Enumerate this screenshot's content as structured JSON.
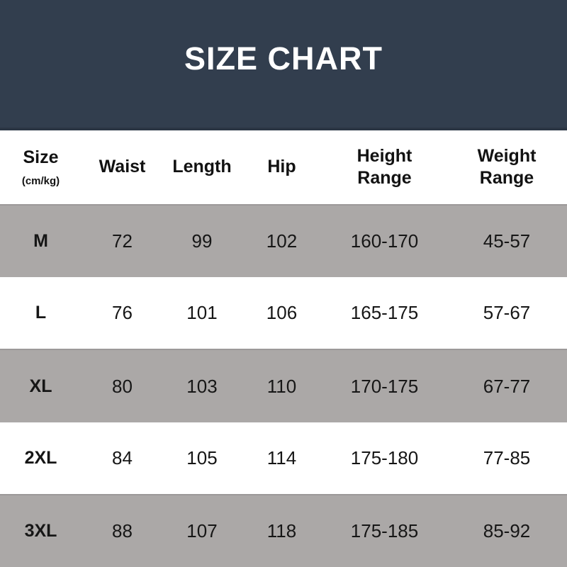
{
  "title": "SIZE CHART",
  "colors": {
    "banner_background": "#323e4e",
    "banner_border": "#2b3544",
    "title_text": "#ffffff",
    "row_gray": "#aba8a7",
    "row_gray_border": "#9c9999",
    "row_white": "#ffffff",
    "table_text": "#161616"
  },
  "columns": [
    {
      "label": "Size",
      "sublabel": "(cm/kg)"
    },
    {
      "label": "Waist"
    },
    {
      "label": "Length"
    },
    {
      "label": "Hip"
    },
    {
      "label": "Height Range"
    },
    {
      "label": "Weight Range"
    }
  ],
  "rows": [
    {
      "size": "M",
      "waist": "72",
      "length": "99",
      "hip": "102",
      "height_range": "160-170",
      "weight_range": "45-57"
    },
    {
      "size": "L",
      "waist": "76",
      "length": "101",
      "hip": "106",
      "height_range": "165-175",
      "weight_range": "57-67"
    },
    {
      "size": "XL",
      "waist": "80",
      "length": "103",
      "hip": "110",
      "height_range": "170-175",
      "weight_range": "67-77"
    },
    {
      "size": "2XL",
      "waist": "84",
      "length": "105",
      "hip": "114",
      "height_range": "175-180",
      "weight_range": "77-85"
    },
    {
      "size": "3XL",
      "waist": "88",
      "length": "107",
      "hip": "118",
      "height_range": "175-185",
      "weight_range": "85-92"
    }
  ],
  "chart_data": {
    "type": "table",
    "title": "SIZE CHART",
    "columns": [
      "Size (cm/kg)",
      "Waist",
      "Length",
      "Hip",
      "Height Range",
      "Weight Range"
    ],
    "rows": [
      [
        "M",
        72,
        99,
        102,
        "160-170",
        "45-57"
      ],
      [
        "L",
        76,
        101,
        106,
        "165-175",
        "57-67"
      ],
      [
        "XL",
        80,
        103,
        110,
        "170-175",
        "67-77"
      ],
      [
        "2XL",
        84,
        105,
        114,
        "175-180",
        "77-85"
      ],
      [
        "3XL",
        88,
        107,
        118,
        "175-185",
        "85-92"
      ]
    ]
  }
}
